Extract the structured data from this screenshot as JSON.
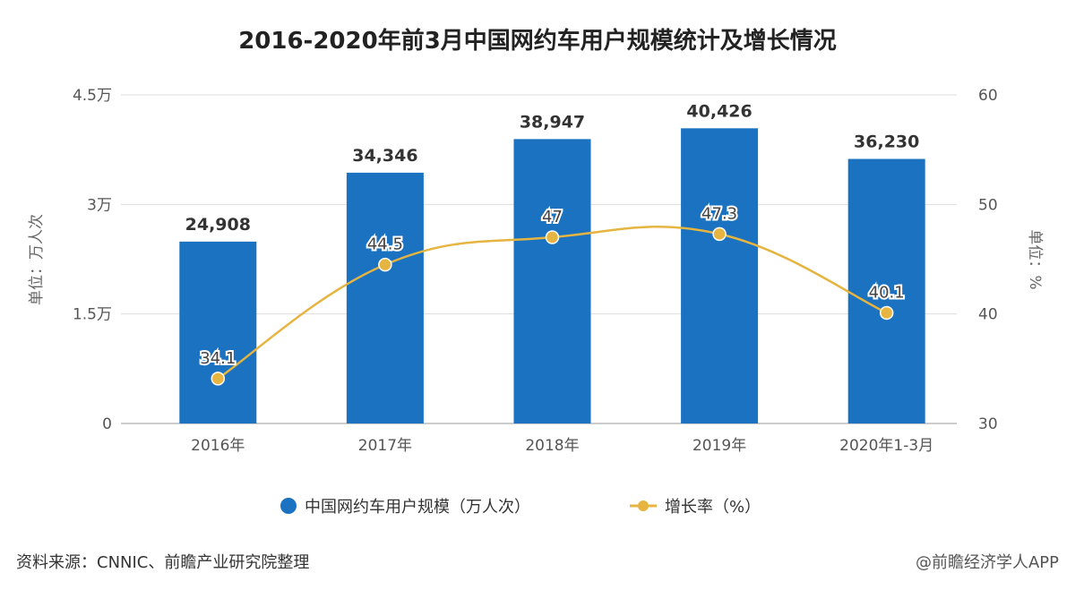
{
  "chart_data": {
    "type": "bar+line",
    "title": "2016-2020年前3月中国网约车用户规模统计及增长情况",
    "categories": [
      "2016年",
      "2017年",
      "2018年",
      "2019年",
      "2020年1-3月"
    ],
    "series": [
      {
        "name": "中国网约车用户规模（万人次）",
        "type": "bar",
        "axis": "left",
        "values": [
          24908,
          34346,
          38947,
          40426,
          36230
        ],
        "labels": [
          "24,908",
          "34,346",
          "38,947",
          "40,426",
          "36,230"
        ],
        "color": "#1a72c0"
      },
      {
        "name": "增长率（%）",
        "type": "line",
        "axis": "right",
        "values": [
          34.1,
          44.5,
          47,
          47.3,
          40.1
        ],
        "labels": [
          "34.1",
          "44.5",
          "47",
          "47.3",
          "40.1"
        ],
        "color": "#e6b440"
      }
    ],
    "ylabel_left": "单位：万人次",
    "ylabel_right": "单位：%",
    "ylim_left": [
      0,
      45000
    ],
    "yticks_left": [
      "0",
      "1.5万",
      "3万",
      "4.5万"
    ],
    "ylim_right": [
      30,
      60
    ],
    "yticks_right": [
      "30",
      "40",
      "50",
      "60"
    ],
    "grid": true,
    "legend_position": "bottom"
  },
  "footer": {
    "source": "资料来源：CNNIC、前瞻产业研究院整理",
    "credit": "@前瞻经济学人APP"
  }
}
